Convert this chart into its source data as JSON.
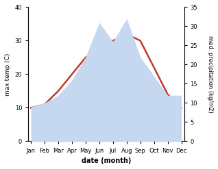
{
  "months": [
    "Jan",
    "Feb",
    "Mar",
    "Apr",
    "May",
    "Jun",
    "Jul",
    "Aug",
    "Sep",
    "Oct",
    "Nov",
    "Dec"
  ],
  "temperature": [
    10,
    11,
    15,
    20,
    25,
    28,
    30,
    32,
    30,
    22,
    14,
    10
  ],
  "precipitation": [
    9,
    10,
    12,
    16,
    22,
    31,
    26,
    32,
    22,
    17,
    12,
    12
  ],
  "temp_color": "#c0392b",
  "precip_color": "#c5d8f0",
  "bg_color": "#ffffff",
  "left_ylabel": "max temp (C)",
  "right_ylabel": "med. precipitation (kg/m2)",
  "xlabel": "date (month)",
  "ylim_left": [
    0,
    40
  ],
  "ylim_right": [
    0,
    35
  ],
  "yticks_left": [
    0,
    10,
    20,
    30,
    40
  ],
  "yticks_right": [
    0,
    5,
    10,
    15,
    20,
    25,
    30,
    35
  ]
}
